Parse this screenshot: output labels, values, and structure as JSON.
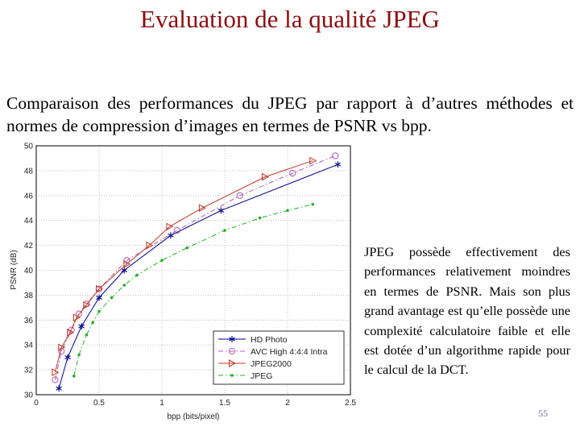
{
  "page": {
    "title": "Evaluation de la qualité JPEG",
    "intro": "Comparaison des performances du JPEG par rapport à d’autres méthodes et normes de compression d’images en termes de PSNR vs bpp.",
    "note": "JPEG possède effectivement des performances relativement moindres en termes de PSNR. Mais son plus grand avantage est qu’elle possède une complexité calculatoire faible et elle est dotée d’un algorithme rapide pour le calcul de la DCT.",
    "page_number": "55",
    "title_color": "#8b0f12"
  },
  "chart_data": {
    "type": "line",
    "xlabel": "bpp (bits/pixel)",
    "ylabel": "PSNR (dB)",
    "xlim": [
      0,
      2.5
    ],
    "ylim": [
      30,
      50
    ],
    "xticks": [
      "0",
      "0.5",
      "1",
      "1.5",
      "2",
      "2.5"
    ],
    "yticks": [
      "30",
      "32",
      "34",
      "36",
      "38",
      "40",
      "42",
      "44",
      "46",
      "48",
      "50"
    ],
    "grid": true,
    "legend_position": "bottom-right",
    "series": [
      {
        "name": "HD Photo",
        "color": "#00008b",
        "line": "solid",
        "marker": "star",
        "x": [
          0.18,
          0.25,
          0.36,
          0.5,
          0.7,
          1.07,
          1.47,
          2.4
        ],
        "y": [
          30.5,
          33.0,
          35.5,
          37.8,
          40.0,
          42.8,
          44.8,
          48.5
        ]
      },
      {
        "name": "AVC High 4:4:4 Intra",
        "color": "#b05ab5",
        "line": "dashdot",
        "marker": "circle",
        "x": [
          0.15,
          0.2,
          0.28,
          0.34,
          0.4,
          0.5,
          0.72,
          1.12,
          1.62,
          2.04,
          2.38
        ],
        "y": [
          31.2,
          33.5,
          35.2,
          36.5,
          37.3,
          38.5,
          40.8,
          43.2,
          46.0,
          47.8,
          49.2
        ]
      },
      {
        "name": "JPEG2000",
        "color": "#c0392b",
        "line": "solid",
        "marker": "triangle-right",
        "x": [
          0.15,
          0.2,
          0.27,
          0.32,
          0.4,
          0.5,
          0.72,
          0.9,
          1.06,
          1.32,
          1.82,
          2.2
        ],
        "y": [
          31.8,
          33.8,
          35.0,
          36.2,
          37.2,
          38.5,
          40.5,
          42.0,
          43.5,
          45.0,
          47.5,
          48.8
        ]
      },
      {
        "name": "JPEG",
        "color": "#22b022",
        "line": "dashdot",
        "marker": "dot",
        "x": [
          0.3,
          0.34,
          0.4,
          0.45,
          0.5,
          0.6,
          0.7,
          0.8,
          1.0,
          1.2,
          1.5,
          1.78,
          2.0,
          2.2
        ],
        "y": [
          31.5,
          33.2,
          34.8,
          35.8,
          36.7,
          37.8,
          38.8,
          39.6,
          40.8,
          41.8,
          43.2,
          44.2,
          44.8,
          45.3
        ]
      }
    ]
  }
}
